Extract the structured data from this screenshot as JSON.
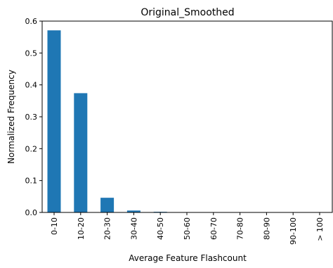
{
  "chart_data": {
    "type": "bar",
    "title": "Original_Smoothed",
    "xlabel": "Average Feature Flashcount",
    "ylabel": "Normalized Frequency",
    "categories": [
      "0-10",
      "10-20",
      "20-30",
      "30-40",
      "40-50",
      "50-60",
      "60-70",
      "70-80",
      "80-90",
      "90-100",
      "> 100"
    ],
    "values": [
      0.571,
      0.374,
      0.046,
      0.006,
      0.002,
      0.001,
      0.0,
      0.0,
      0.0,
      0.0,
      0.0
    ],
    "ylim": [
      0,
      0.6
    ],
    "yticks": [
      0.0,
      0.1,
      0.2,
      0.3,
      0.4,
      0.5,
      0.6
    ],
    "ytick_labels": [
      "0.0",
      "0.1",
      "0.2",
      "0.3",
      "0.4",
      "0.5",
      "0.6"
    ],
    "grid": false,
    "legend": "none",
    "bar_color": "#1f77b4"
  }
}
